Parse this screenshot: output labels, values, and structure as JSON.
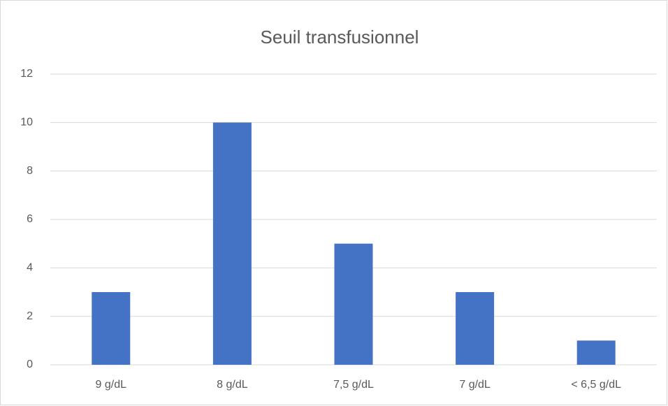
{
  "chart_data": {
    "type": "bar",
    "title": "Seuil transfusionnel",
    "categories": [
      "9 g/dL",
      "8 g/dL",
      "7,5 g/dL",
      "7 g/dL",
      "< 6,5 g/dL"
    ],
    "values": [
      3,
      10,
      5,
      3,
      1
    ],
    "color": "#4472c4",
    "ylim": [
      0,
      12
    ],
    "yticks": [
      0,
      2,
      4,
      6,
      8,
      10,
      12
    ],
    "grid": true
  }
}
